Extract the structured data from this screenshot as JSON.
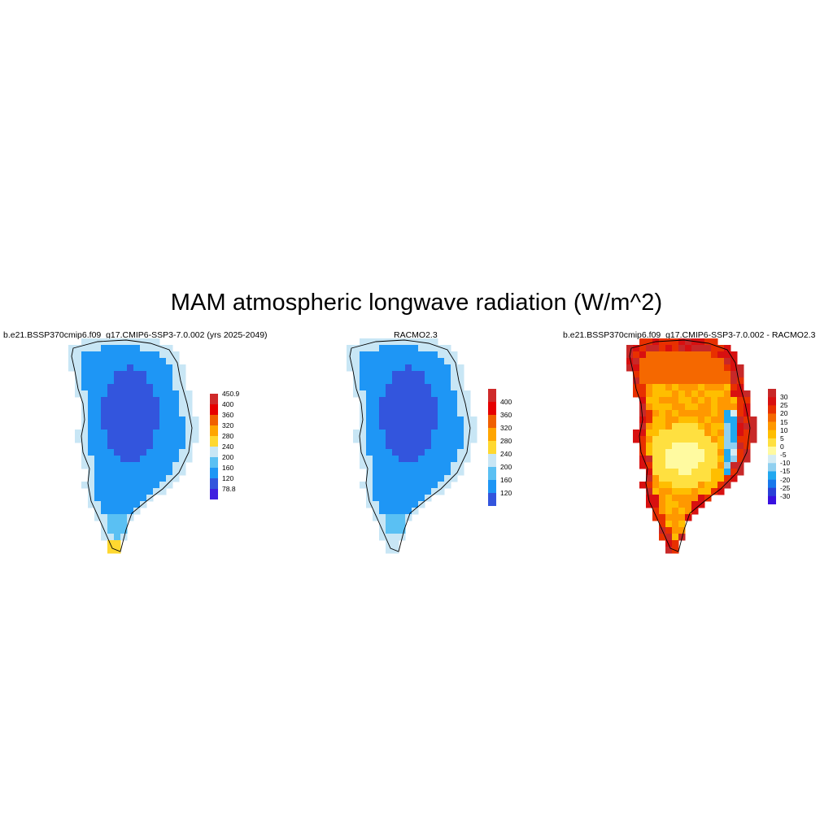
{
  "figure": {
    "title": "MAM atmospheric longwave radiation (W/m^2)"
  },
  "palettes": {
    "abs": [
      "#4020e0",
      "#3355dd",
      "#1e96f5",
      "#5ac0f3",
      "#c8e6f5",
      "#ffd830",
      "#ffa500",
      "#f06000",
      "#e60000",
      "#cf2a2a"
    ],
    "diff": [
      "#3810e0",
      "#2a40d8",
      "#1878ec",
      "#20a8f0",
      "#90d0f0",
      "#d4ecf4",
      "#fffaa0",
      "#ffe040",
      "#ffbe00",
      "#ff9800",
      "#f56800",
      "#e83000",
      "#d81010",
      "#c82828"
    ]
  },
  "panels": [
    {
      "id": "model",
      "title": "b.e21.BSSP370cmip6.f09_g17.CMIP6-SSP3-7.0.002 (yrs 2025-2049)",
      "colorbar": {
        "labels": [
          "450.9",
          "400",
          "360",
          "320",
          "280",
          "240",
          "200",
          "160",
          "120",
          "78.8"
        ]
      }
    },
    {
      "id": "obs",
      "title": "RACMO2.3",
      "colorbar": {
        "labels": [
          "400",
          "360",
          "320",
          "280",
          "240",
          "200",
          "160",
          "120"
        ]
      }
    },
    {
      "id": "diff",
      "title": "b.e21.BSSP370cmip6.f09_g17.CMIP6-SSP3-7.0.002 - RACMO2.3",
      "colorbar": {
        "labels": [
          "30",
          "25",
          "20",
          "15",
          "10",
          "5",
          "0",
          "-5",
          "-10",
          "-15",
          "-20",
          "-25",
          "-30"
        ]
      }
    }
  ]
}
